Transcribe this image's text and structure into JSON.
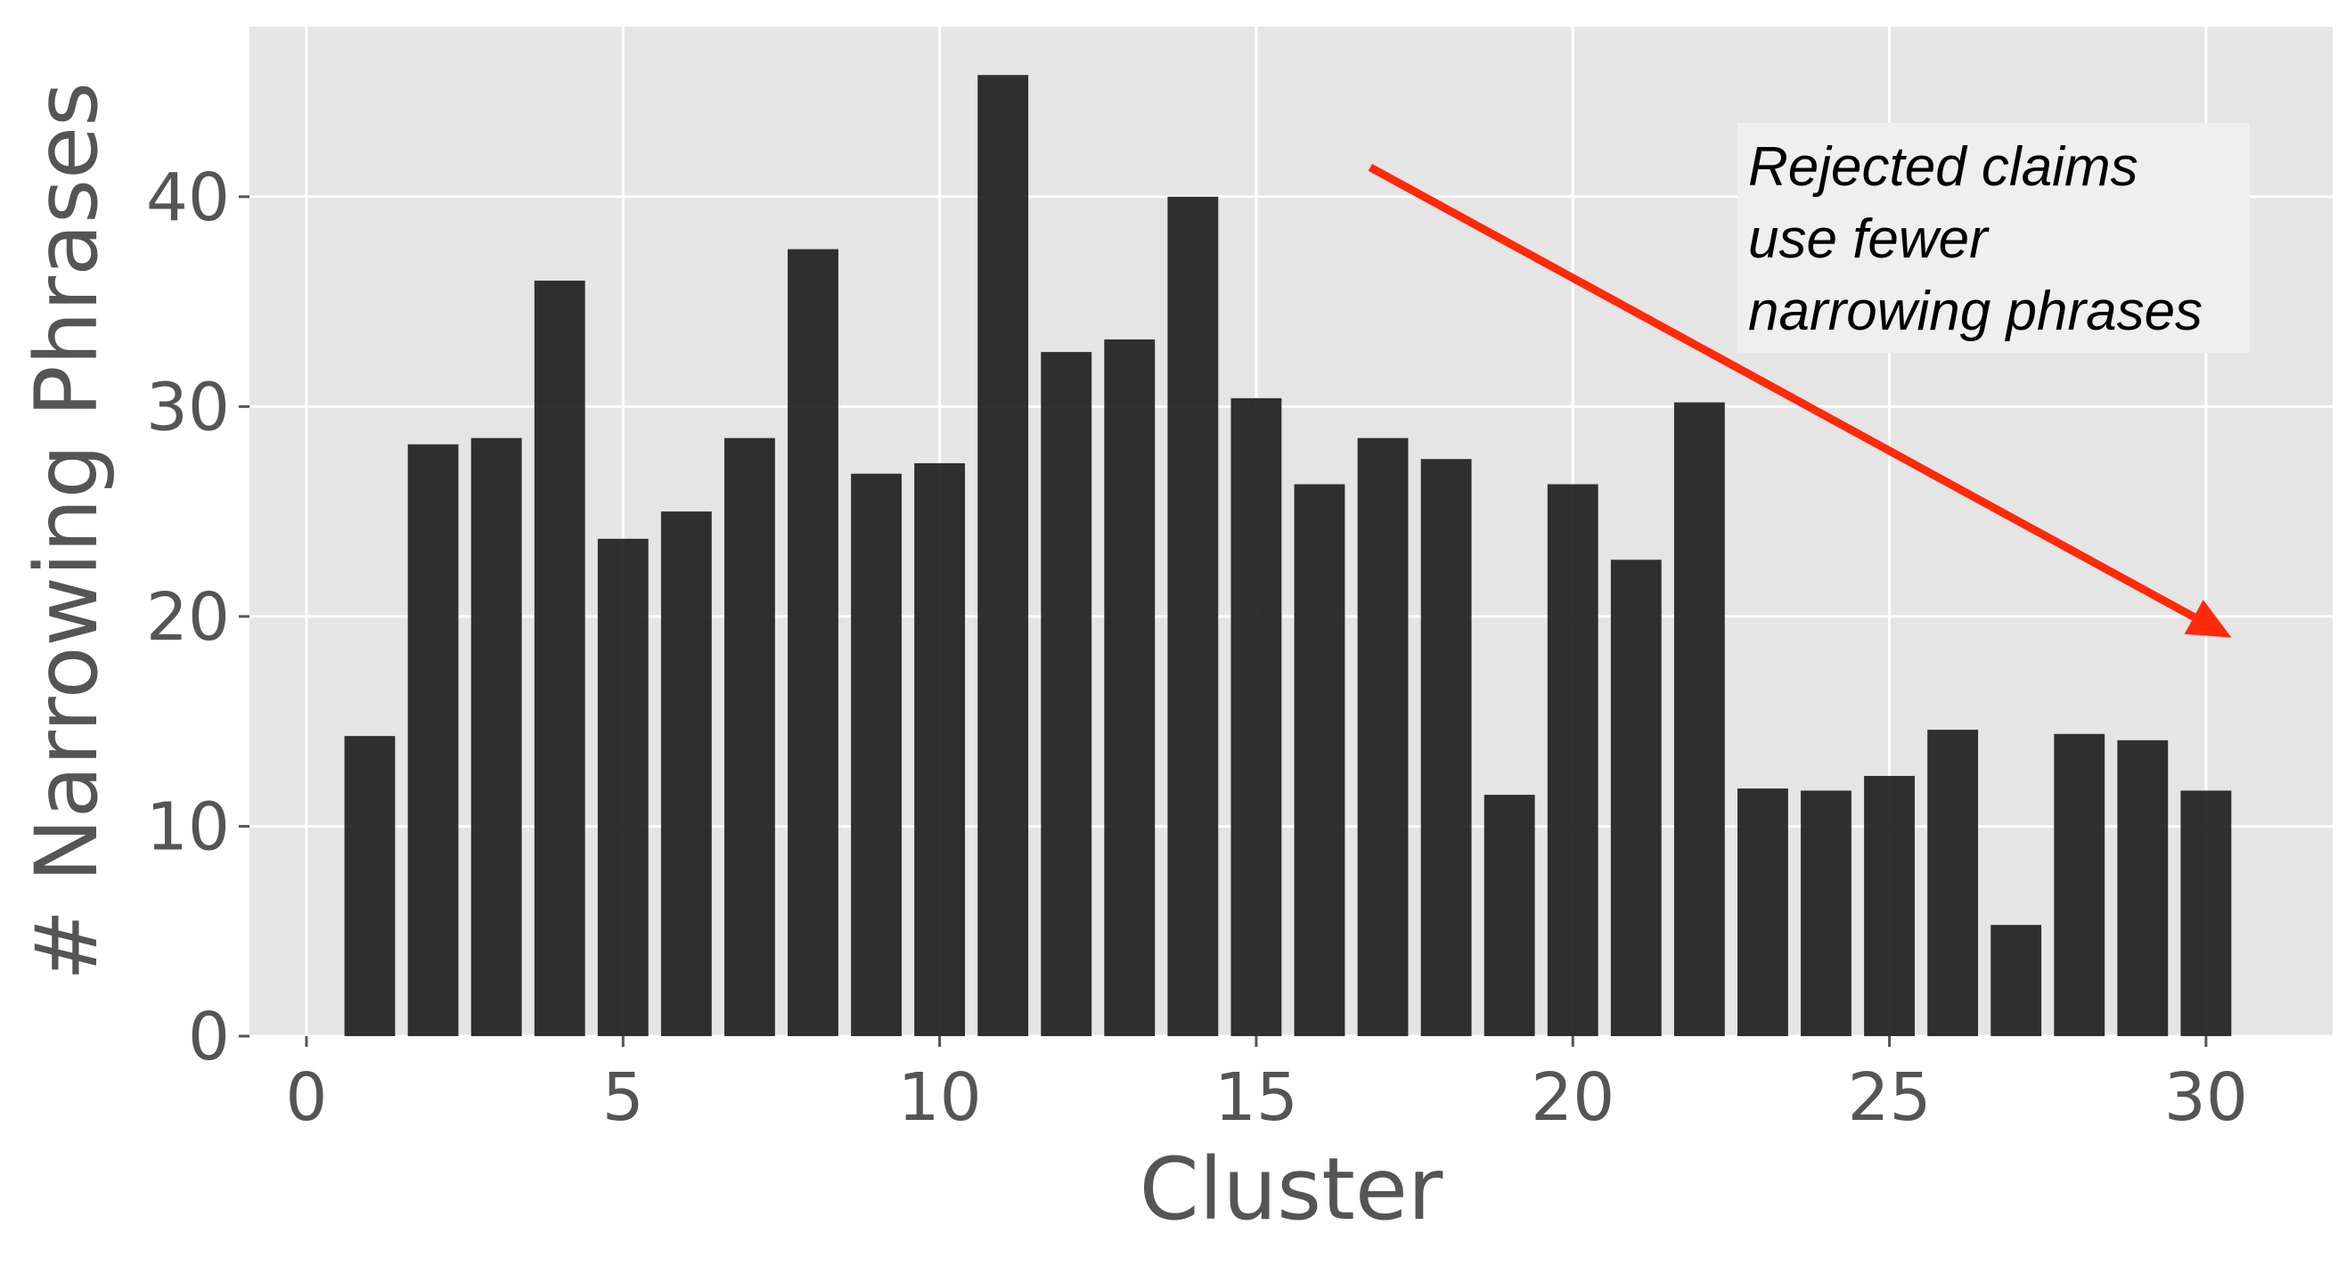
{
  "chart_data": {
    "type": "bar",
    "title": "",
    "xlabel": "Cluster",
    "ylabel": "# Narrowing Phrases",
    "x": [
      1,
      2,
      3,
      4,
      5,
      6,
      7,
      8,
      9,
      10,
      11,
      12,
      13,
      14,
      15,
      16,
      17,
      18,
      19,
      20,
      21,
      22,
      23,
      24,
      25,
      26,
      27,
      28,
      29,
      30
    ],
    "values": [
      14.3,
      28.2,
      28.5,
      36.0,
      23.7,
      25.0,
      28.5,
      37.5,
      26.8,
      27.3,
      45.8,
      32.6,
      33.2,
      40.0,
      30.4,
      26.3,
      28.5,
      27.5,
      11.5,
      26.3,
      22.7,
      30.2,
      11.8,
      11.7,
      12.4,
      14.6,
      5.3,
      14.4,
      14.1,
      11.7
    ],
    "xticks": [
      "0",
      "5",
      "10",
      "15",
      "20",
      "25",
      "30"
    ],
    "yticks": [
      "0",
      "10",
      "20",
      "30",
      "40"
    ],
    "xlim": [
      -0.9,
      32.0
    ],
    "ylim": [
      0,
      48.1
    ],
    "grid": true,
    "bar_color": "#1f1f1f",
    "background_color": "#e5e5e5",
    "grid_color": "#ffffff",
    "annotation": {
      "lines": [
        "Rejected claims",
        "use fewer",
        "narrowing phrases"
      ],
      "box_color": "#efefef",
      "arrow_color": "#ff2a0a",
      "arrow_from": [
        16.8,
        41.4
      ],
      "arrow_to": [
        30.4,
        19.0
      ]
    }
  }
}
